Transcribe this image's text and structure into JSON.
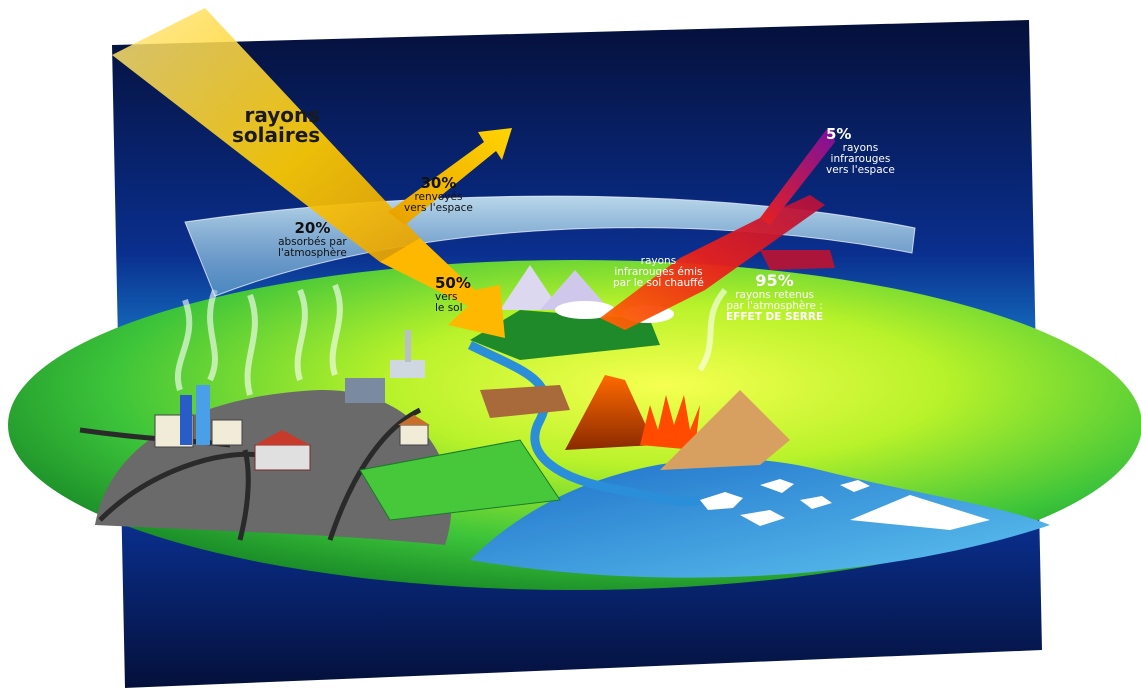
{
  "diagram": {
    "solar": {
      "line1": "rayons",
      "line2": "solaires"
    },
    "reflected": {
      "percent": "30%",
      "line1": "renvoyés",
      "line2": "vers l'espace"
    },
    "absorbed": {
      "percent": "20%",
      "line1": "absorbés par",
      "line2": "l'atmosphère"
    },
    "ground": {
      "percent": "50%",
      "line1": "vers",
      "line2": "le sol"
    },
    "ir_space": {
      "percent": "5%",
      "line1": "rayons",
      "line2": "infrarouges",
      "line3": "vers l'espace"
    },
    "ir_ground": {
      "line1": "rayons",
      "line2": "infrarouges émis",
      "line3": "par le sol chauffé"
    },
    "retained": {
      "percent": "95%",
      "line1": "rayons retenus",
      "line2": "par l'atmosphère :",
      "line3": "EFFET DE SERRE"
    }
  },
  "colors": {
    "space_top": "#05103a",
    "space_mid": "#0a3aa8",
    "horizon_glow": "#2ad6e8",
    "land_center": "#f2ff3a",
    "land_edge": "#1c9a28",
    "sun_arrow": "#f5c800",
    "ir_arrow": "#e8281c",
    "water": "#2a8fd8"
  }
}
